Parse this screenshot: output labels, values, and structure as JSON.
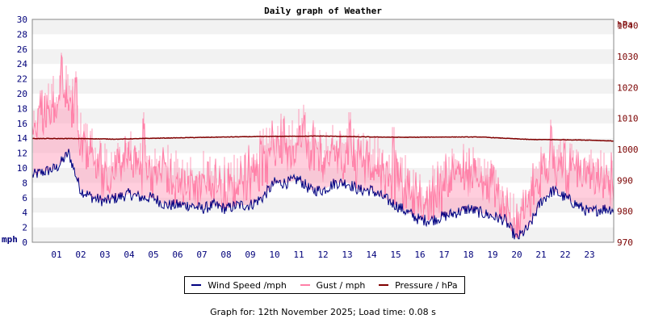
{
  "chart_data": {
    "type": "line",
    "title": "Daily graph of Weather",
    "ylabel_left": "mph",
    "ylabel_right": "hPa",
    "ylim_left": [
      0,
      30
    ],
    "ylim_right": [
      970,
      1042
    ],
    "yticks_left": [
      "0",
      "2",
      "4",
      "6",
      "8",
      "10",
      "12",
      "14",
      "16",
      "18",
      "20",
      "22",
      "24",
      "26",
      "28",
      "30"
    ],
    "yticks_right": [
      "970",
      "980",
      "990",
      "1000",
      "1010",
      "1020",
      "1030",
      "1040"
    ],
    "xticks": [
      "01",
      "02",
      "03",
      "04",
      "05",
      "06",
      "07",
      "08",
      "09",
      "10",
      "11",
      "12",
      "13",
      "14",
      "15",
      "16",
      "17",
      "18",
      "19",
      "20",
      "21",
      "22",
      "23"
    ],
    "xlim_hours": [
      0,
      24
    ],
    "grid": "horizontal alternating bands",
    "legend_position": "bottom",
    "series": [
      {
        "name": "Wind Speed /mph",
        "color": "#000080",
        "axis": "left",
        "points": [
          [
            0,
            9
          ],
          [
            0.5,
            9.5
          ],
          [
            1,
            10
          ],
          [
            1.5,
            12
          ],
          [
            2,
            7
          ],
          [
            2.5,
            6
          ],
          [
            3,
            5.5
          ],
          [
            3.5,
            6
          ],
          [
            4,
            6.5
          ],
          [
            4.5,
            6
          ],
          [
            5,
            6
          ],
          [
            5.5,
            5
          ],
          [
            6,
            5
          ],
          [
            6.5,
            5
          ],
          [
            7,
            4.5
          ],
          [
            7.5,
            5
          ],
          [
            8,
            4.5
          ],
          [
            8.5,
            5
          ],
          [
            9,
            5
          ],
          [
            9.5,
            6
          ],
          [
            10,
            8
          ],
          [
            10.5,
            8
          ],
          [
            11,
            8.5
          ],
          [
            11.5,
            7
          ],
          [
            12,
            7
          ],
          [
            12.5,
            8
          ],
          [
            13,
            8
          ],
          [
            13.5,
            7
          ],
          [
            14,
            7
          ],
          [
            14.5,
            6
          ],
          [
            15,
            5
          ],
          [
            15.5,
            4
          ],
          [
            16,
            3
          ],
          [
            16.5,
            3
          ],
          [
            17,
            3.5
          ],
          [
            17.5,
            4
          ],
          [
            18,
            4.5
          ],
          [
            18.5,
            4
          ],
          [
            19,
            3.5
          ],
          [
            19.5,
            3
          ],
          [
            20,
            0.5
          ],
          [
            20.5,
            2
          ],
          [
            21,
            5.5
          ],
          [
            21.5,
            7
          ],
          [
            22,
            6
          ],
          [
            22.5,
            5
          ],
          [
            23,
            4
          ],
          [
            23.5,
            4.5
          ],
          [
            24,
            4.5
          ]
        ]
      },
      {
        "name": "Gust / mph",
        "color": "#ff7fa7",
        "axis": "left",
        "points": [
          [
            0,
            16
          ],
          [
            0.5,
            18
          ],
          [
            1,
            20
          ],
          [
            1.5,
            21
          ],
          [
            2,
            15
          ],
          [
            2.5,
            12
          ],
          [
            3,
            10
          ],
          [
            3.5,
            11
          ],
          [
            4,
            12
          ],
          [
            4.5,
            11
          ],
          [
            5,
            10
          ],
          [
            5.5,
            10
          ],
          [
            6,
            9
          ],
          [
            6.5,
            9
          ],
          [
            7,
            9
          ],
          [
            7.5,
            9
          ],
          [
            8,
            8
          ],
          [
            8.5,
            9
          ],
          [
            9,
            10
          ],
          [
            9.5,
            12
          ],
          [
            10,
            14
          ],
          [
            10.5,
            14
          ],
          [
            11,
            15
          ],
          [
            11.5,
            14
          ],
          [
            12,
            12
          ],
          [
            12.5,
            13
          ],
          [
            13,
            13
          ],
          [
            13.5,
            12
          ],
          [
            14,
            12
          ],
          [
            14.5,
            10
          ],
          [
            15,
            10
          ],
          [
            15.5,
            8
          ],
          [
            16,
            6
          ],
          [
            16.5,
            7
          ],
          [
            17,
            9
          ],
          [
            17.5,
            10
          ],
          [
            18,
            10
          ],
          [
            18.5,
            9
          ],
          [
            19,
            8
          ],
          [
            19.5,
            6
          ],
          [
            20,
            2
          ],
          [
            20.5,
            6
          ],
          [
            21,
            10
          ],
          [
            21.5,
            12
          ],
          [
            22,
            11
          ],
          [
            22.5,
            10
          ],
          [
            23,
            9
          ],
          [
            23.5,
            9
          ],
          [
            24,
            9
          ]
        ],
        "peaks": [
          [
            1.2,
            25.5
          ],
          [
            1.8,
            23
          ],
          [
            4.6,
            17.5
          ],
          [
            10.4,
            17
          ],
          [
            11.2,
            18.5
          ],
          [
            13.1,
            17.5
          ],
          [
            14.9,
            15.5
          ],
          [
            21.4,
            16.5
          ]
        ]
      },
      {
        "name": "Pressure / hPa",
        "color": "#800000",
        "axis": "right",
        "points": [
          [
            0,
            1003.5
          ],
          [
            2,
            1003.5
          ],
          [
            3.5,
            1003.3
          ],
          [
            5,
            1003.6
          ],
          [
            6.5,
            1003.8
          ],
          [
            8,
            1004
          ],
          [
            10,
            1004.2
          ],
          [
            12,
            1004.3
          ],
          [
            14,
            1004
          ],
          [
            15.5,
            1003.9
          ],
          [
            17,
            1004
          ],
          [
            18.5,
            1004
          ],
          [
            19.5,
            1003.6
          ],
          [
            20.5,
            1003.2
          ],
          [
            22,
            1003.1
          ],
          [
            23,
            1003
          ],
          [
            24,
            1002.7
          ]
        ]
      }
    ]
  },
  "footer": "Graph for: 12th November 2025; Load time: 0.08 s"
}
